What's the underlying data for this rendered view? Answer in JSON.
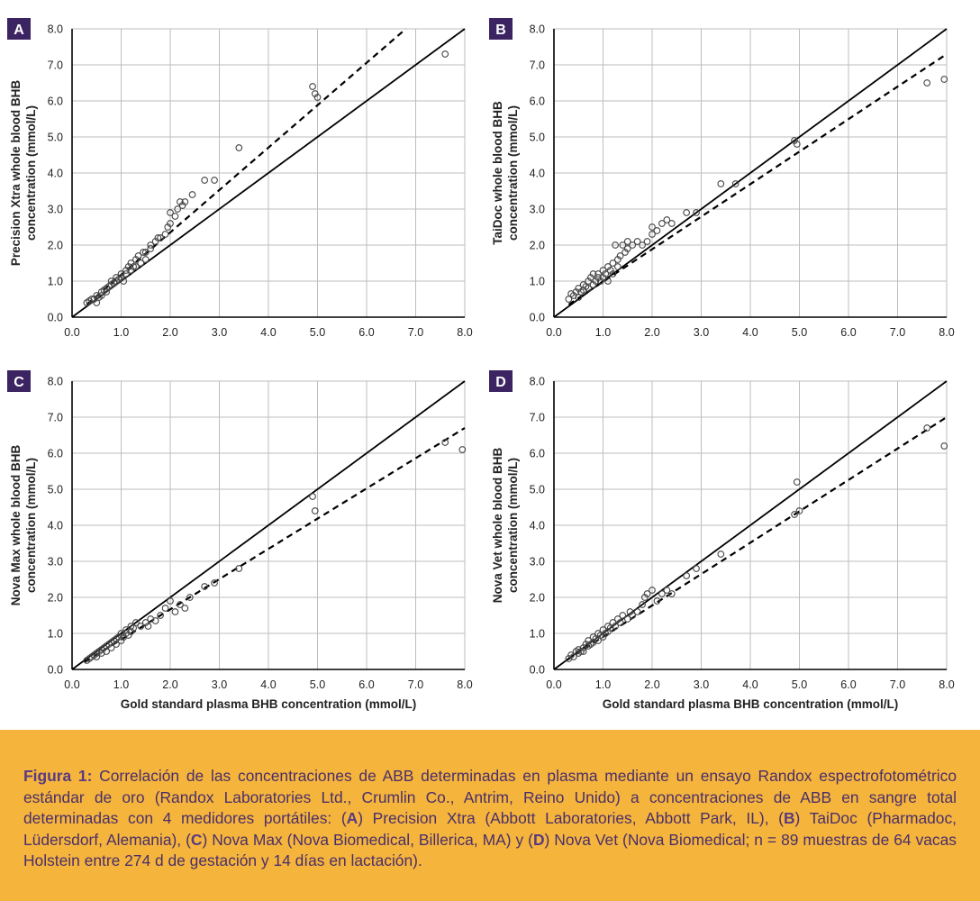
{
  "axis_style": {
    "frame_color": "#000000",
    "grid_color": "#bdbdbd",
    "point_color": "#444444",
    "label_bg": "#3b2461",
    "label_fg": "#ffffff"
  },
  "chart_data": [
    {
      "panel": "A",
      "type": "scatter",
      "ylabel_line1": "Precision Xtra whole blood BHB",
      "ylabel_line2": "concentration (mmol/L)",
      "xlabel": "",
      "xlim": [
        0,
        8
      ],
      "ylim": [
        0,
        8
      ],
      "ticks": [
        "0.0",
        "1.0",
        "2.0",
        "3.0",
        "4.0",
        "5.0",
        "6.0",
        "7.0",
        "8.0"
      ],
      "identity_line": [
        [
          0,
          0
        ],
        [
          8,
          8
        ]
      ],
      "regression_line": [
        [
          0.3,
          0.35
        ],
        [
          6.8,
          8.0
        ]
      ],
      "points": [
        [
          0.3,
          0.4
        ],
        [
          0.35,
          0.45
        ],
        [
          0.4,
          0.5
        ],
        [
          0.45,
          0.5
        ],
        [
          0.5,
          0.4
        ],
        [
          0.5,
          0.6
        ],
        [
          0.55,
          0.55
        ],
        [
          0.6,
          0.7
        ],
        [
          0.6,
          0.6
        ],
        [
          0.65,
          0.75
        ],
        [
          0.7,
          0.8
        ],
        [
          0.7,
          0.7
        ],
        [
          0.75,
          0.85
        ],
        [
          0.8,
          0.9
        ],
        [
          0.8,
          1.0
        ],
        [
          0.85,
          0.95
        ],
        [
          0.9,
          1.0
        ],
        [
          0.9,
          1.1
        ],
        [
          0.95,
          1.05
        ],
        [
          1.0,
          1.1
        ],
        [
          1.0,
          1.2
        ],
        [
          1.05,
          1.0
        ],
        [
          1.1,
          1.3
        ],
        [
          1.1,
          1.2
        ],
        [
          1.15,
          1.4
        ],
        [
          1.2,
          1.3
        ],
        [
          1.2,
          1.5
        ],
        [
          1.25,
          1.4
        ],
        [
          1.3,
          1.6
        ],
        [
          1.3,
          1.4
        ],
        [
          1.35,
          1.7
        ],
        [
          1.4,
          1.5
        ],
        [
          1.45,
          1.8
        ],
        [
          1.5,
          1.6
        ],
        [
          1.5,
          1.8
        ],
        [
          1.6,
          1.9
        ],
        [
          1.6,
          2.0
        ],
        [
          1.7,
          2.1
        ],
        [
          1.75,
          2.2
        ],
        [
          1.8,
          2.2
        ],
        [
          1.9,
          2.3
        ],
        [
          1.95,
          2.5
        ],
        [
          2.0,
          2.6
        ],
        [
          2.0,
          2.9
        ],
        [
          2.1,
          2.8
        ],
        [
          2.15,
          3.0
        ],
        [
          2.2,
          3.2
        ],
        [
          2.25,
          3.1
        ],
        [
          2.3,
          3.2
        ],
        [
          2.45,
          3.4
        ],
        [
          2.7,
          3.8
        ],
        [
          2.9,
          3.8
        ],
        [
          3.4,
          4.7
        ],
        [
          4.9,
          6.4
        ],
        [
          4.95,
          6.2
        ],
        [
          5.0,
          6.1
        ],
        [
          7.6,
          7.3
        ]
      ]
    },
    {
      "panel": "B",
      "type": "scatter",
      "ylabel_line1": "TaiDoc whole blood BHB",
      "ylabel_line2": "concentration (mmol/L)",
      "xlabel": "",
      "xlim": [
        0,
        8
      ],
      "ylim": [
        0,
        8
      ],
      "ticks": [
        "0.0",
        "1.0",
        "2.0",
        "3.0",
        "4.0",
        "5.0",
        "6.0",
        "7.0",
        "8.0"
      ],
      "identity_line": [
        [
          0,
          0
        ],
        [
          8,
          8
        ]
      ],
      "regression_line": [
        [
          0.3,
          0.35
        ],
        [
          8.0,
          7.3
        ]
      ],
      "points": [
        [
          0.3,
          0.5
        ],
        [
          0.35,
          0.65
        ],
        [
          0.4,
          0.6
        ],
        [
          0.45,
          0.7
        ],
        [
          0.5,
          0.55
        ],
        [
          0.5,
          0.8
        ],
        [
          0.55,
          0.7
        ],
        [
          0.6,
          0.9
        ],
        [
          0.6,
          0.75
        ],
        [
          0.65,
          0.85
        ],
        [
          0.7,
          1.0
        ],
        [
          0.7,
          0.8
        ],
        [
          0.75,
          1.1
        ],
        [
          0.8,
          0.9
        ],
        [
          0.8,
          1.2
        ],
        [
          0.85,
          1.0
        ],
        [
          0.9,
          1.1
        ],
        [
          0.9,
          1.2
        ],
        [
          0.95,
          1.0
        ],
        [
          1.0,
          1.3
        ],
        [
          1.0,
          1.1
        ],
        [
          1.05,
          1.2
        ],
        [
          1.1,
          1.4
        ],
        [
          1.1,
          1.0
        ],
        [
          1.15,
          1.3
        ],
        [
          1.2,
          1.5
        ],
        [
          1.2,
          1.2
        ],
        [
          1.25,
          2.0
        ],
        [
          1.3,
          1.6
        ],
        [
          1.3,
          1.4
        ],
        [
          1.35,
          1.7
        ],
        [
          1.4,
          2.0
        ],
        [
          1.45,
          1.8
        ],
        [
          1.5,
          1.9
        ],
        [
          1.5,
          2.1
        ],
        [
          1.6,
          2.0
        ],
        [
          1.7,
          2.1
        ],
        [
          1.8,
          2.0
        ],
        [
          1.9,
          2.1
        ],
        [
          2.0,
          2.3
        ],
        [
          2.0,
          2.5
        ],
        [
          2.1,
          2.4
        ],
        [
          2.2,
          2.6
        ],
        [
          2.3,
          2.7
        ],
        [
          2.4,
          2.6
        ],
        [
          2.7,
          2.9
        ],
        [
          2.9,
          2.9
        ],
        [
          3.4,
          3.7
        ],
        [
          3.7,
          3.7
        ],
        [
          4.9,
          4.9
        ],
        [
          4.95,
          4.8
        ],
        [
          7.6,
          6.5
        ],
        [
          7.95,
          6.6
        ]
      ]
    },
    {
      "panel": "C",
      "type": "scatter",
      "ylabel_line1": "Nova Max whole blood BHB",
      "ylabel_line2": "concentration (mmol/L)",
      "xlabel": "Gold standard plasma BHB concentration (mmol/L)",
      "xlim": [
        0,
        8
      ],
      "ylim": [
        0,
        8
      ],
      "ticks": [
        "0.0",
        "1.0",
        "2.0",
        "3.0",
        "4.0",
        "5.0",
        "6.0",
        "7.0",
        "8.0"
      ],
      "identity_line": [
        [
          0,
          0
        ],
        [
          8,
          8
        ]
      ],
      "regression_line": [
        [
          0.25,
          0.2
        ],
        [
          8.0,
          6.7
        ]
      ],
      "points": [
        [
          0.3,
          0.25
        ],
        [
          0.35,
          0.3
        ],
        [
          0.4,
          0.35
        ],
        [
          0.45,
          0.4
        ],
        [
          0.5,
          0.35
        ],
        [
          0.5,
          0.45
        ],
        [
          0.55,
          0.5
        ],
        [
          0.6,
          0.45
        ],
        [
          0.6,
          0.55
        ],
        [
          0.65,
          0.6
        ],
        [
          0.7,
          0.5
        ],
        [
          0.7,
          0.65
        ],
        [
          0.75,
          0.7
        ],
        [
          0.8,
          0.6
        ],
        [
          0.8,
          0.75
        ],
        [
          0.85,
          0.8
        ],
        [
          0.9,
          0.7
        ],
        [
          0.9,
          0.85
        ],
        [
          0.95,
          0.9
        ],
        [
          1.0,
          0.8
        ],
        [
          1.0,
          1.0
        ],
        [
          1.05,
          0.9
        ],
        [
          1.1,
          1.0
        ],
        [
          1.1,
          1.1
        ],
        [
          1.15,
          0.95
        ],
        [
          1.2,
          1.2
        ],
        [
          1.2,
          1.05
        ],
        [
          1.25,
          1.15
        ],
        [
          1.3,
          1.3
        ],
        [
          1.4,
          1.2
        ],
        [
          1.5,
          1.3
        ],
        [
          1.55,
          1.2
        ],
        [
          1.6,
          1.4
        ],
        [
          1.7,
          1.35
        ],
        [
          1.8,
          1.5
        ],
        [
          1.9,
          1.7
        ],
        [
          2.0,
          1.9
        ],
        [
          2.1,
          1.6
        ],
        [
          2.2,
          1.8
        ],
        [
          2.3,
          1.7
        ],
        [
          2.4,
          2.0
        ],
        [
          2.7,
          2.3
        ],
        [
          2.9,
          2.4
        ],
        [
          3.4,
          2.8
        ],
        [
          4.9,
          4.8
        ],
        [
          4.95,
          4.4
        ],
        [
          7.6,
          6.3
        ],
        [
          7.95,
          6.1
        ]
      ]
    },
    {
      "panel": "D",
      "type": "scatter",
      "ylabel_line1": "Nova Vet whole blood BHB",
      "ylabel_line2": "concentration (mmol/L)",
      "xlabel": "Gold standard plasma BHB concentration (mmol/L)",
      "xlim": [
        0,
        8
      ],
      "ylim": [
        0,
        8
      ],
      "ticks": [
        "0.0",
        "1.0",
        "2.0",
        "3.0",
        "4.0",
        "5.0",
        "6.0",
        "7.0",
        "8.0"
      ],
      "identity_line": [
        [
          0,
          0
        ],
        [
          8,
          8
        ]
      ],
      "regression_line": [
        [
          0.25,
          0.25
        ],
        [
          8.0,
          7.0
        ]
      ],
      "points": [
        [
          0.3,
          0.3
        ],
        [
          0.35,
          0.4
        ],
        [
          0.4,
          0.35
        ],
        [
          0.45,
          0.5
        ],
        [
          0.5,
          0.45
        ],
        [
          0.5,
          0.55
        ],
        [
          0.55,
          0.5
        ],
        [
          0.6,
          0.6
        ],
        [
          0.6,
          0.5
        ],
        [
          0.65,
          0.7
        ],
        [
          0.7,
          0.65
        ],
        [
          0.7,
          0.8
        ],
        [
          0.75,
          0.7
        ],
        [
          0.8,
          0.9
        ],
        [
          0.8,
          0.75
        ],
        [
          0.85,
          0.85
        ],
        [
          0.9,
          1.0
        ],
        [
          0.9,
          0.8
        ],
        [
          0.95,
          0.95
        ],
        [
          1.0,
          1.1
        ],
        [
          1.0,
          0.9
        ],
        [
          1.05,
          1.0
        ],
        [
          1.1,
          1.2
        ],
        [
          1.1,
          1.05
        ],
        [
          1.15,
          1.15
        ],
        [
          1.2,
          1.3
        ],
        [
          1.25,
          1.2
        ],
        [
          1.3,
          1.4
        ],
        [
          1.35,
          1.3
        ],
        [
          1.4,
          1.5
        ],
        [
          1.5,
          1.4
        ],
        [
          1.55,
          1.6
        ],
        [
          1.6,
          1.5
        ],
        [
          1.7,
          1.6
        ],
        [
          1.8,
          1.8
        ],
        [
          1.85,
          2.0
        ],
        [
          1.9,
          2.1
        ],
        [
          2.0,
          2.2
        ],
        [
          2.1,
          1.9
        ],
        [
          2.2,
          2.1
        ],
        [
          2.3,
          2.2
        ],
        [
          2.4,
          2.1
        ],
        [
          2.7,
          2.6
        ],
        [
          2.9,
          2.8
        ],
        [
          3.4,
          3.2
        ],
        [
          4.9,
          4.3
        ],
        [
          4.95,
          5.2
        ],
        [
          5.0,
          4.4
        ],
        [
          7.6,
          6.7
        ],
        [
          7.95,
          6.2
        ]
      ]
    }
  ],
  "caption": {
    "prefix": "Figura 1:",
    "t1": " Correlación de las concentraciones de ABB determinadas en plasma mediante un ensayo Randox espectrofotométrico estándar de oro (Randox Laboratories Ltd., Crumlin Co., Antrim, Reino Unido) a concentraciones de ABB en sangre total determinadas con 4 medidores portátiles: (",
    "a": "A",
    "t2": ") Precision Xtra (Abbott Laboratories, Abbott Park, IL), (",
    "b": "B",
    "t3": ") TaiDoc (Pharmadoc, Lüdersdorf, Alemania), (",
    "c": "C",
    "t4": ") Nova Max (Nova Biomedical, Billerica, MA) y (",
    "d": "D",
    "t5": ") Nova Vet (Nova Biomedical; n = 89 muestras de 64 vacas Holstein entre 274 d de gestación y 14 días en lactación)."
  }
}
